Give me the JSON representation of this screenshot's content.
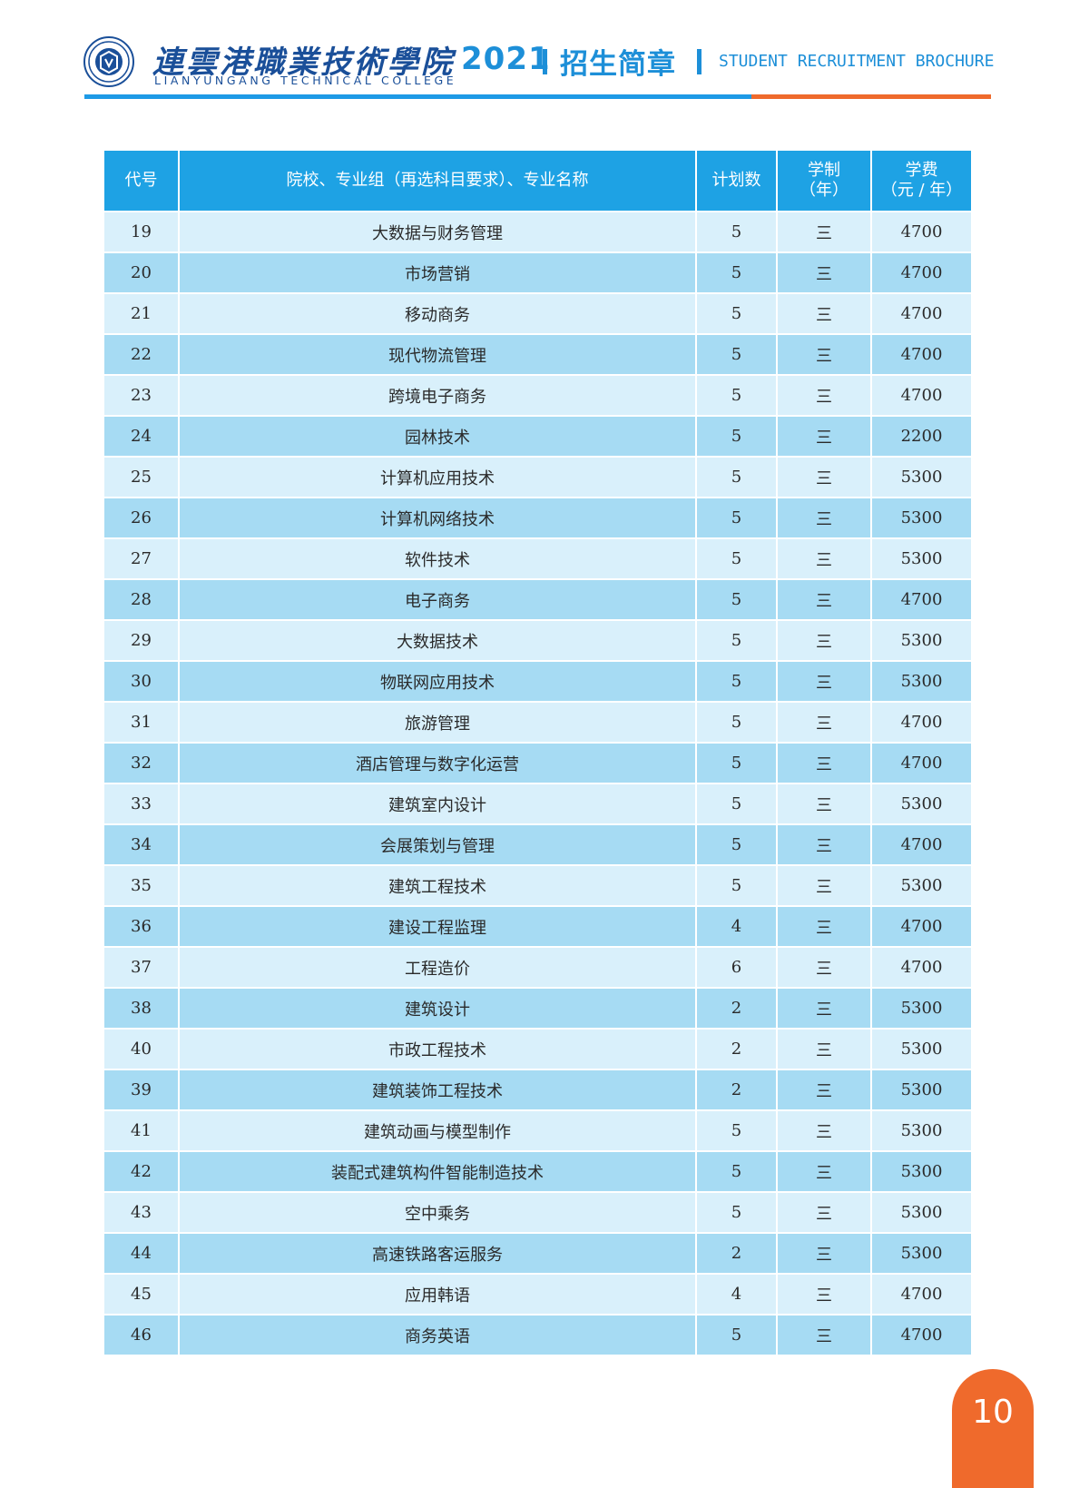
{
  "header": {
    "college_name_cn": "連雲港職業技術學院",
    "college_name_en": "LIANYUNGANG TECHNICAL COLLEGE",
    "year": "2021",
    "brochure_title": "招生简章",
    "brochure_title_en": "STUDENT RECRUITMENT BROCHURE",
    "colors": {
      "primary_blue": "#1d8fd8",
      "accent_orange": "#ef6a2c",
      "header_row": "#1ea2e4"
    }
  },
  "table": {
    "columns": [
      {
        "label": "代号"
      },
      {
        "label": "院校、专业组（再选科目要求）、专业名称"
      },
      {
        "label": "计划数"
      },
      {
        "label": "学制",
        "label2": "（年）"
      },
      {
        "label": "学费",
        "label2": "（元 / 年）"
      }
    ],
    "rows": [
      {
        "code": "19",
        "name": "大数据与财务管理",
        "plan": "5",
        "years": "三",
        "fee": "4700"
      },
      {
        "code": "20",
        "name": "市场营销",
        "plan": "5",
        "years": "三",
        "fee": "4700"
      },
      {
        "code": "21",
        "name": "移动商务",
        "plan": "5",
        "years": "三",
        "fee": "4700"
      },
      {
        "code": "22",
        "name": "现代物流管理",
        "plan": "5",
        "years": "三",
        "fee": "4700"
      },
      {
        "code": "23",
        "name": "跨境电子商务",
        "plan": "5",
        "years": "三",
        "fee": "4700"
      },
      {
        "code": "24",
        "name": "园林技术",
        "plan": "5",
        "years": "三",
        "fee": "2200"
      },
      {
        "code": "25",
        "name": "计算机应用技术",
        "plan": "5",
        "years": "三",
        "fee": "5300"
      },
      {
        "code": "26",
        "name": "计算机网络技术",
        "plan": "5",
        "years": "三",
        "fee": "5300"
      },
      {
        "code": "27",
        "name": "软件技术",
        "plan": "5",
        "years": "三",
        "fee": "5300"
      },
      {
        "code": "28",
        "name": "电子商务",
        "plan": "5",
        "years": "三",
        "fee": "4700"
      },
      {
        "code": "29",
        "name": "大数据技术",
        "plan": "5",
        "years": "三",
        "fee": "5300"
      },
      {
        "code": "30",
        "name": "物联网应用技术",
        "plan": "5",
        "years": "三",
        "fee": "5300"
      },
      {
        "code": "31",
        "name": "旅游管理",
        "plan": "5",
        "years": "三",
        "fee": "4700"
      },
      {
        "code": "32",
        "name": "酒店管理与数字化运营",
        "plan": "5",
        "years": "三",
        "fee": "4700"
      },
      {
        "code": "33",
        "name": "建筑室内设计",
        "plan": "5",
        "years": "三",
        "fee": "5300"
      },
      {
        "code": "34",
        "name": "会展策划与管理",
        "plan": "5",
        "years": "三",
        "fee": "4700"
      },
      {
        "code": "35",
        "name": "建筑工程技术",
        "plan": "5",
        "years": "三",
        "fee": "5300"
      },
      {
        "code": "36",
        "name": "建设工程监理",
        "plan": "4",
        "years": "三",
        "fee": "4700"
      },
      {
        "code": "37",
        "name": "工程造价",
        "plan": "6",
        "years": "三",
        "fee": "4700"
      },
      {
        "code": "38",
        "name": "建筑设计",
        "plan": "2",
        "years": "三",
        "fee": "5300"
      },
      {
        "code": "40",
        "name": "市政工程技术",
        "plan": "2",
        "years": "三",
        "fee": "5300"
      },
      {
        "code": "39",
        "name": "建筑装饰工程技术",
        "plan": "2",
        "years": "三",
        "fee": "5300"
      },
      {
        "code": "41",
        "name": "建筑动画与模型制作",
        "plan": "5",
        "years": "三",
        "fee": "5300"
      },
      {
        "code": "42",
        "name": "装配式建筑构件智能制造技术",
        "plan": "5",
        "years": "三",
        "fee": "5300"
      },
      {
        "code": "43",
        "name": "空中乘务",
        "plan": "5",
        "years": "三",
        "fee": "5300"
      },
      {
        "code": "44",
        "name": "高速铁路客运服务",
        "plan": "2",
        "years": "三",
        "fee": "5300"
      },
      {
        "code": "45",
        "name": "应用韩语",
        "plan": "4",
        "years": "三",
        "fee": "4700"
      },
      {
        "code": "46",
        "name": "商务英语",
        "plan": "5",
        "years": "三",
        "fee": "4700"
      }
    ]
  },
  "footer": {
    "page_number": "10"
  }
}
